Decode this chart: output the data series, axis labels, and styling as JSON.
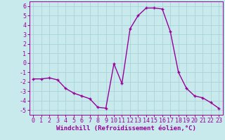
{
  "x": [
    0,
    1,
    2,
    3,
    4,
    5,
    6,
    7,
    8,
    9,
    10,
    11,
    12,
    13,
    14,
    15,
    16,
    17,
    18,
    19,
    20,
    21,
    22,
    23
  ],
  "y": [
    -1.7,
    -1.7,
    -1.6,
    -1.8,
    -2.7,
    -3.2,
    -3.5,
    -3.8,
    -4.7,
    -4.8,
    -0.1,
    -2.2,
    3.6,
    5.0,
    5.8,
    5.8,
    5.7,
    3.3,
    -1.0,
    -2.7,
    -3.5,
    -3.7,
    -4.2,
    -4.8
  ],
  "line_color": "#990099",
  "marker": "+",
  "bg_color": "#c8eaed",
  "grid_color": "#aad4d8",
  "xlabel": "Windchill (Refroidissement éolien,°C)",
  "xlim": [
    -0.5,
    23.5
  ],
  "ylim": [
    -5.5,
    6.5
  ],
  "xticks": [
    0,
    1,
    2,
    3,
    4,
    5,
    6,
    7,
    8,
    9,
    10,
    11,
    12,
    13,
    14,
    15,
    16,
    17,
    18,
    19,
    20,
    21,
    22,
    23
  ],
  "yticks": [
    -5,
    -4,
    -3,
    -2,
    -1,
    0,
    1,
    2,
    3,
    4,
    5,
    6
  ],
  "xlabel_fontsize": 6.5,
  "tick_fontsize": 6,
  "line_width": 1.0,
  "marker_size": 3.5
}
